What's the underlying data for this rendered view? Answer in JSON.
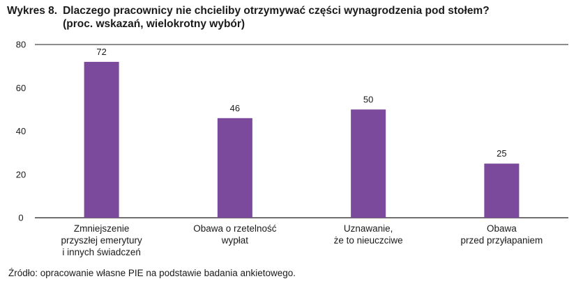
{
  "figure": {
    "prefix": "Wykres 8.",
    "title_line1": "Dlaczego pracownicy nie chcieliby otrzymywać części wynagrodzenia pod stołem?",
    "title_line2": "(proc. wskazań, wielokrotny wybór)"
  },
  "source": "Źródło: opracowanie własne PIE na podstawie badania ankietowego.",
  "chart_data": {
    "type": "bar",
    "categories": [
      [
        "Zmniejszenie",
        "przyszłej emerytury",
        "i innych świadczeń"
      ],
      [
        "Obawa o rzetelność",
        "wypłat"
      ],
      [
        "Uznawanie,",
        "że to nieuczciwe"
      ],
      [
        "Obawa",
        "przed przyłapaniem"
      ]
    ],
    "values": [
      72,
      46,
      50,
      25
    ],
    "ylim": [
      0,
      80
    ],
    "yticks": [
      0,
      20,
      40,
      60,
      80
    ],
    "bar_color": "#7b4a9c",
    "axis_color": "#1a1a1a",
    "grid": "top line only",
    "legend": "none"
  }
}
